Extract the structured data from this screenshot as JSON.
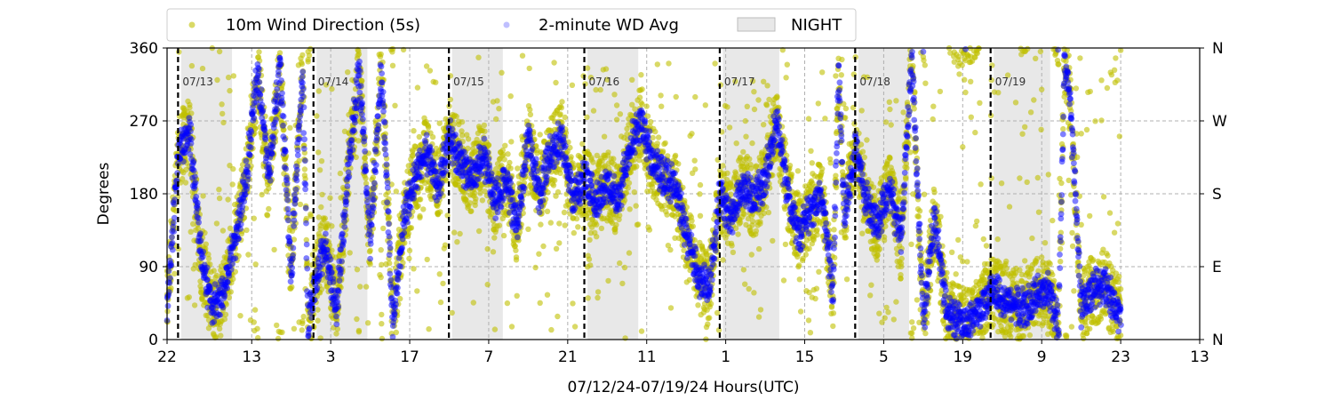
{
  "chart_data": {
    "type": "scatter",
    "xlabel": "07/12/24-07/19/24  Hours(UTC)",
    "ylabel": "Degrees",
    "x_range_hours": [
      22,
      181
    ],
    "x_ticks": [
      {
        "hour": 22,
        "label": "22"
      },
      {
        "hour": 37,
        "label": "13"
      },
      {
        "hour": 51,
        "label": "3"
      },
      {
        "hour": 65,
        "label": "17"
      },
      {
        "hour": 79,
        "label": "7"
      },
      {
        "hour": 93,
        "label": "21"
      },
      {
        "hour": 107,
        "label": "11"
      },
      {
        "hour": 121,
        "label": "1"
      },
      {
        "hour": 135,
        "label": "15"
      },
      {
        "hour": 149,
        "label": "5"
      },
      {
        "hour": 163,
        "label": "19"
      },
      {
        "hour": 177,
        "label": "9"
      },
      {
        "hour": 191,
        "label": "23"
      },
      {
        "hour": 205,
        "label": "13"
      }
    ],
    "x_axis_max_hour": 205,
    "ylim": [
      0,
      360
    ],
    "y_ticks_left": [
      0,
      90,
      180,
      270,
      360
    ],
    "y_ticks_right": [
      {
        "value": 0,
        "label": "N"
      },
      {
        "value": 90,
        "label": "E"
      },
      {
        "value": 180,
        "label": "S"
      },
      {
        "value": 270,
        "label": "W"
      },
      {
        "value": 360,
        "label": "N"
      }
    ],
    "grid": true,
    "legend_position": "top-left",
    "series": [
      {
        "name": "10m Wind Direction (5s)",
        "color": "#bfbf00"
      },
      {
        "name": "2-minute WD Avg",
        "color": "#0000ff"
      }
    ],
    "night_label": "NIGHT",
    "night_color": "#d9d9d9",
    "night_bands_hours": [
      [
        24.5,
        33.5
      ],
      [
        48.5,
        57.5
      ],
      [
        72.5,
        81.5
      ],
      [
        96.5,
        105.5
      ],
      [
        120.5,
        130.5
      ],
      [
        144.5,
        153.5
      ],
      [
        168.5,
        178.5
      ]
    ],
    "day_markers": [
      {
        "hour": 23,
        "label": "07/13"
      },
      {
        "hour": 47,
        "label": "07/14"
      },
      {
        "hour": 71,
        "label": "07/15"
      },
      {
        "hour": 95,
        "label": "07/16"
      },
      {
        "hour": 119,
        "label": "07/17"
      },
      {
        "hour": 143,
        "label": "07/18"
      },
      {
        "hour": 167,
        "label": "07/19"
      }
    ],
    "trend": [
      [
        22,
        40
      ],
      [
        24,
        230
      ],
      [
        26,
        260
      ],
      [
        28,
        100
      ],
      [
        30,
        40
      ],
      [
        32,
        60
      ],
      [
        34,
        120
      ],
      [
        36,
        200
      ],
      [
        38,
        330
      ],
      [
        40,
        200
      ],
      [
        42,
        340
      ],
      [
        44,
        80
      ],
      [
        46,
        340
      ],
      [
        47,
        20
      ],
      [
        48,
        60
      ],
      [
        50,
        120
      ],
      [
        52,
        30
      ],
      [
        54,
        200
      ],
      [
        56,
        330
      ],
      [
        58,
        120
      ],
      [
        60,
        340
      ],
      [
        62,
        20
      ],
      [
        64,
        150
      ],
      [
        66,
        200
      ],
      [
        68,
        230
      ],
      [
        70,
        190
      ],
      [
        72,
        250
      ],
      [
        74,
        220
      ],
      [
        76,
        200
      ],
      [
        78,
        230
      ],
      [
        80,
        170
      ],
      [
        82,
        200
      ],
      [
        84,
        140
      ],
      [
        86,
        250
      ],
      [
        88,
        180
      ],
      [
        90,
        230
      ],
      [
        92,
        250
      ],
      [
        94,
        170
      ],
      [
        96,
        200
      ],
      [
        98,
        170
      ],
      [
        100,
        190
      ],
      [
        102,
        170
      ],
      [
        104,
        240
      ],
      [
        106,
        270
      ],
      [
        108,
        220
      ],
      [
        110,
        200
      ],
      [
        112,
        190
      ],
      [
        114,
        130
      ],
      [
        116,
        80
      ],
      [
        118,
        60
      ],
      [
        120,
        180
      ],
      [
        122,
        150
      ],
      [
        124,
        190
      ],
      [
        126,
        170
      ],
      [
        128,
        200
      ],
      [
        130,
        270
      ],
      [
        132,
        180
      ],
      [
        134,
        130
      ],
      [
        136,
        160
      ],
      [
        138,
        180
      ],
      [
        140,
        60
      ],
      [
        141,
        330
      ],
      [
        142,
        160
      ],
      [
        144,
        230
      ],
      [
        146,
        170
      ],
      [
        148,
        140
      ],
      [
        150,
        190
      ],
      [
        152,
        120
      ],
      [
        154,
        350
      ],
      [
        156,
        20
      ],
      [
        158,
        150
      ],
      [
        160,
        40
      ],
      [
        162,
        25
      ],
      [
        164,
        20
      ],
      [
        166,
        40
      ],
      [
        168,
        60
      ],
      [
        170,
        50
      ],
      [
        172,
        45
      ],
      [
        174,
        40
      ],
      [
        176,
        55
      ],
      [
        178,
        60
      ],
      [
        180,
        20
      ],
      [
        181,
        340
      ],
      [
        182,
        300
      ],
      [
        184,
        40
      ],
      [
        186,
        60
      ],
      [
        188,
        70
      ],
      [
        190,
        40
      ],
      [
        191,
        30
      ]
    ]
  }
}
